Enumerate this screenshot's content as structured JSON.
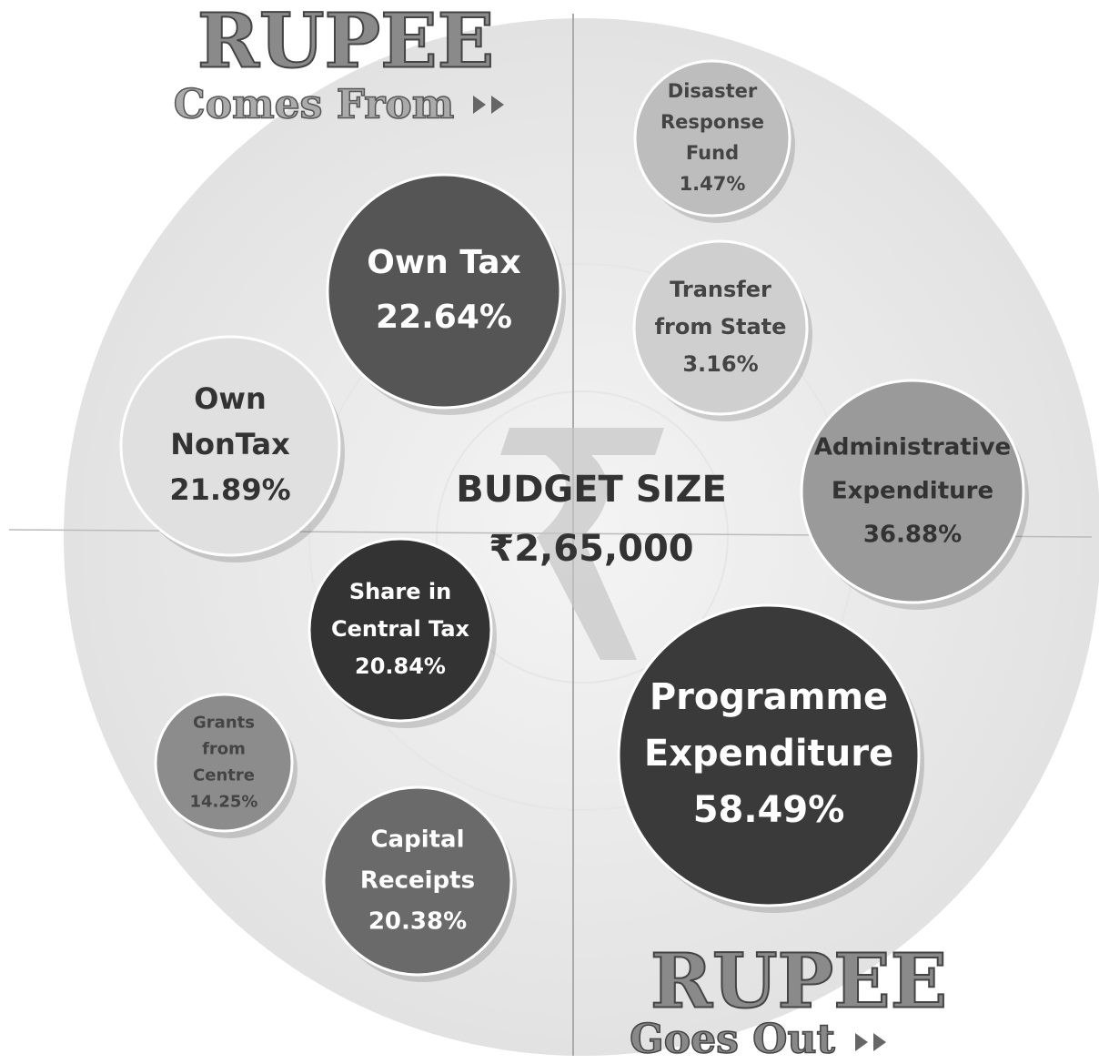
{
  "header": {
    "comes_from": {
      "word": "RUPEE",
      "caption": "Comes From"
    },
    "goes_out": {
      "word": "RUPEE",
      "caption": "Goes Out"
    }
  },
  "center": {
    "title": "BUDGET SIZE",
    "amount": "₹2,65,000"
  },
  "bubbles": [
    {
      "lines": [
        "Own Tax"
      ],
      "share": "22.64%"
    },
    {
      "lines": [
        "Own",
        "NonTax"
      ],
      "share": "21.89%"
    },
    {
      "lines": [
        "Share in",
        "Central Tax"
      ],
      "share": "20.84%"
    },
    {
      "lines": [
        "Grants",
        "from",
        "Centre"
      ],
      "share": "14.25%"
    },
    {
      "lines": [
        "Capital",
        "Receipts"
      ],
      "share": "20.38%"
    },
    {
      "lines": [
        "Disaster",
        "Response",
        "Fund"
      ],
      "share": "1.47%"
    },
    {
      "lines": [
        "Transfer",
        "from State"
      ],
      "share": "3.16%"
    },
    {
      "lines": [
        "Administrative",
        "Expenditure"
      ],
      "share": "36.88%"
    },
    {
      "lines": [
        "Programme",
        "Expenditure"
      ],
      "share": "58.49%"
    }
  ]
}
